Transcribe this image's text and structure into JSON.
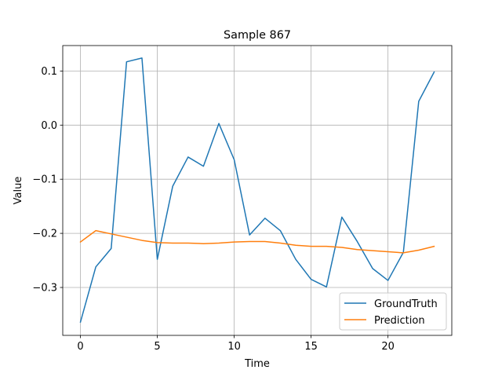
{
  "chart_data": {
    "type": "line",
    "title": "Sample 867",
    "xlabel": "Time",
    "ylabel": "Value",
    "xlim": [
      -1.15,
      24.15
    ],
    "ylim": [
      -0.3885,
      0.147
    ],
    "grid": true,
    "legend_position": "bottom-right",
    "x_ticks": [
      0,
      5,
      10,
      15,
      20
    ],
    "x_tick_labels": [
      "0",
      "5",
      "10",
      "15",
      "20"
    ],
    "y_ticks": [
      -0.3,
      -0.2,
      -0.1,
      0.0,
      0.1
    ],
    "y_tick_labels": [
      "−0.3",
      "−0.2",
      "−0.1",
      "0.0",
      "0.1"
    ],
    "x": [
      0,
      1,
      2,
      3,
      4,
      5,
      6,
      7,
      8,
      9,
      10,
      11,
      12,
      13,
      14,
      15,
      16,
      17,
      18,
      19,
      20,
      21,
      22,
      23
    ],
    "series": [
      {
        "name": "GroundTruth",
        "color": "#1f77b4",
        "values": [
          -0.364,
          -0.262,
          -0.228,
          0.117,
          0.124,
          -0.248,
          -0.113,
          -0.059,
          -0.076,
          0.003,
          -0.064,
          -0.203,
          -0.172,
          -0.195,
          -0.248,
          -0.285,
          -0.299,
          -0.17,
          -0.215,
          -0.265,
          -0.287,
          -0.235,
          0.044,
          0.098
        ]
      },
      {
        "name": "Prediction",
        "color": "#ff7f0e",
        "values": [
          -0.216,
          -0.195,
          -0.201,
          -0.207,
          -0.213,
          -0.217,
          -0.218,
          -0.218,
          -0.219,
          -0.218,
          -0.216,
          -0.215,
          -0.215,
          -0.218,
          -0.222,
          -0.224,
          -0.224,
          -0.226,
          -0.23,
          -0.232,
          -0.234,
          -0.236,
          -0.231,
          -0.224
        ]
      }
    ]
  }
}
